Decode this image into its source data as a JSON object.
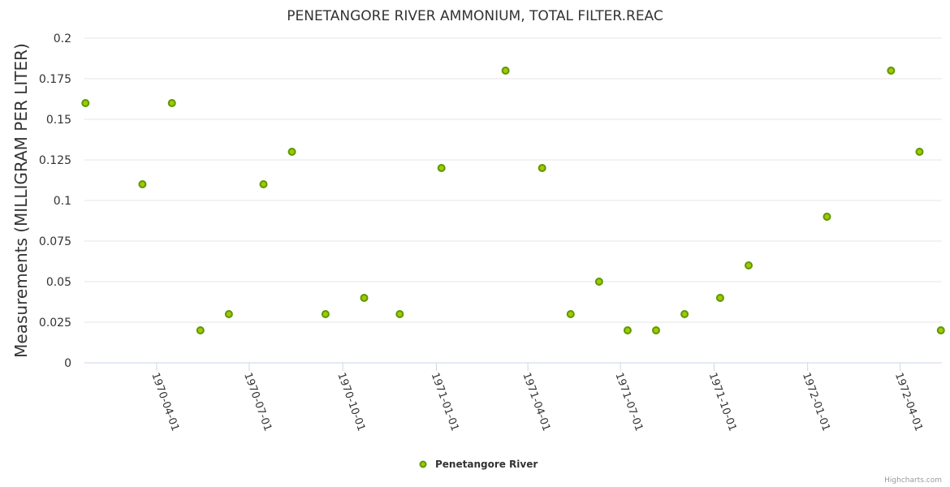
{
  "chart_data": {
    "type": "scatter",
    "title": "PENETANGORE RIVER AMMONIUM, TOTAL FILTER.REAC",
    "xlabel": "",
    "ylabel": "Measurements (MILLIGRAM PER LITER)",
    "ylim": [
      0,
      0.2
    ],
    "yticks": [
      "0",
      "0.025",
      "0.05",
      "0.075",
      "0.1",
      "0.125",
      "0.15",
      "0.175",
      "0.2"
    ],
    "xlim": [
      "1970-01-20",
      "1972-05-12"
    ],
    "xticks": [
      "1970-04-01",
      "1970-07-01",
      "1970-10-01",
      "1971-01-01",
      "1971-04-01",
      "1971-07-01",
      "1971-10-01",
      "1972-01-01",
      "1972-04-01"
    ],
    "series": [
      {
        "name": "Penetangore River",
        "color": "#5a9a00",
        "fill": "#7cb5ec",
        "points": [
          {
            "x": "1970-01-21",
            "y": 0.16
          },
          {
            "x": "1970-03-18",
            "y": 0.11
          },
          {
            "x": "1970-04-16",
            "y": 0.16
          },
          {
            "x": "1970-05-14",
            "y": 0.02
          },
          {
            "x": "1970-06-11",
            "y": 0.03
          },
          {
            "x": "1970-07-15",
            "y": 0.11
          },
          {
            "x": "1970-08-12",
            "y": 0.13
          },
          {
            "x": "1970-09-14",
            "y": 0.03
          },
          {
            "x": "1970-10-22",
            "y": 0.04
          },
          {
            "x": "1970-11-26",
            "y": 0.03
          },
          {
            "x": "1971-01-06",
            "y": 0.12
          },
          {
            "x": "1971-03-10",
            "y": 0.18
          },
          {
            "x": "1971-04-15",
            "y": 0.12
          },
          {
            "x": "1971-05-13",
            "y": 0.03
          },
          {
            "x": "1971-06-10",
            "y": 0.05
          },
          {
            "x": "1971-07-08",
            "y": 0.02
          },
          {
            "x": "1971-08-05",
            "y": 0.02
          },
          {
            "x": "1971-09-02",
            "y": 0.03
          },
          {
            "x": "1971-10-07",
            "y": 0.04
          },
          {
            "x": "1971-11-04",
            "y": 0.06
          },
          {
            "x": "1972-01-20",
            "y": 0.09
          },
          {
            "x": "1972-03-23",
            "y": 0.18
          },
          {
            "x": "1972-04-20",
            "y": 0.13
          },
          {
            "x": "1972-05-11",
            "y": 0.02
          }
        ]
      }
    ],
    "legend": "bottom-center"
  },
  "credits": "Highcharts.com"
}
